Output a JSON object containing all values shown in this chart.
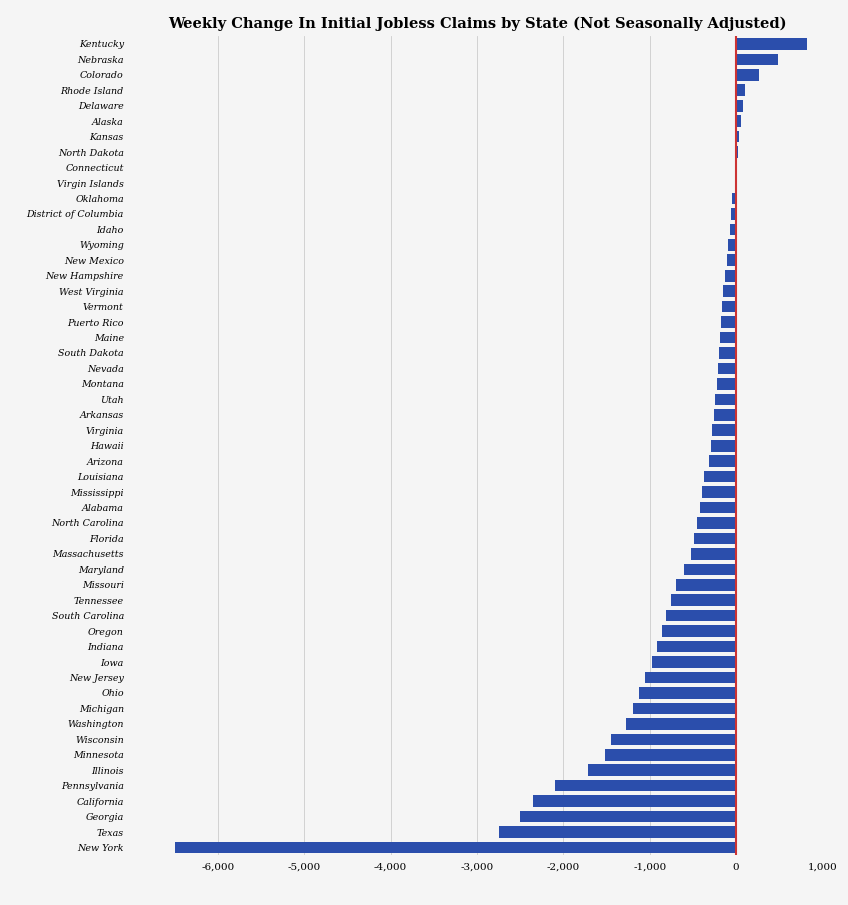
{
  "title": "Weekly Change In Initial Jobless Claims by State (Not Seasonally Adjusted)",
  "states": [
    "Kentucky",
    "Nebraska",
    "Colorado",
    "Rhode Island",
    "Delaware",
    "Alaska",
    "Kansas",
    "North Dakota",
    "Connecticut",
    "Virgin Islands",
    "Oklahoma",
    "District of Columbia",
    "Idaho",
    "Wyoming",
    "New Mexico",
    "New Hampshire",
    "West Virginia",
    "Vermont",
    "Puerto Rico",
    "Maine",
    "South Dakota",
    "Nevada",
    "Montana",
    "Utah",
    "Arkansas",
    "Virginia",
    "Hawaii",
    "Arizona",
    "Louisiana",
    "Mississippi",
    "Alabama",
    "North Carolina",
    "Florida",
    "Massachusetts",
    "Maryland",
    "Missouri",
    "Tennessee",
    "South Carolina",
    "Oregon",
    "Indiana",
    "Iowa",
    "New Jersey",
    "Ohio",
    "Michigan",
    "Washington",
    "Wisconsin",
    "Minnesota",
    "Illinois",
    "Pennsylvania",
    "California",
    "Georgia",
    "Texas",
    "New York"
  ],
  "values": [
    820,
    480,
    260,
    100,
    80,
    60,
    30,
    20,
    10,
    5,
    -50,
    -60,
    -70,
    -90,
    -110,
    -130,
    -150,
    -160,
    -175,
    -190,
    -200,
    -215,
    -225,
    -240,
    -260,
    -280,
    -295,
    -310,
    -370,
    -400,
    -420,
    -450,
    -490,
    -520,
    -600,
    -700,
    -750,
    -810,
    -860,
    -920,
    -970,
    -1050,
    -1120,
    -1200,
    -1280,
    -1450,
    -1520,
    -1720,
    -2100,
    -2350,
    -2500,
    -2750,
    -6500
  ],
  "bar_color": "#2B4EAC",
  "zeroline_color": "#cc3333",
  "background_color": "#f5f5f5",
  "grid_color": "#cccccc",
  "xlim": [
    -7000,
    1000
  ],
  "xticks": [
    -6000,
    -5000,
    -4000,
    -3000,
    -2000,
    -1000,
    0,
    1000
  ],
  "title_fontsize": 10.5,
  "label_fontsize": 6.8,
  "bar_height": 0.75
}
